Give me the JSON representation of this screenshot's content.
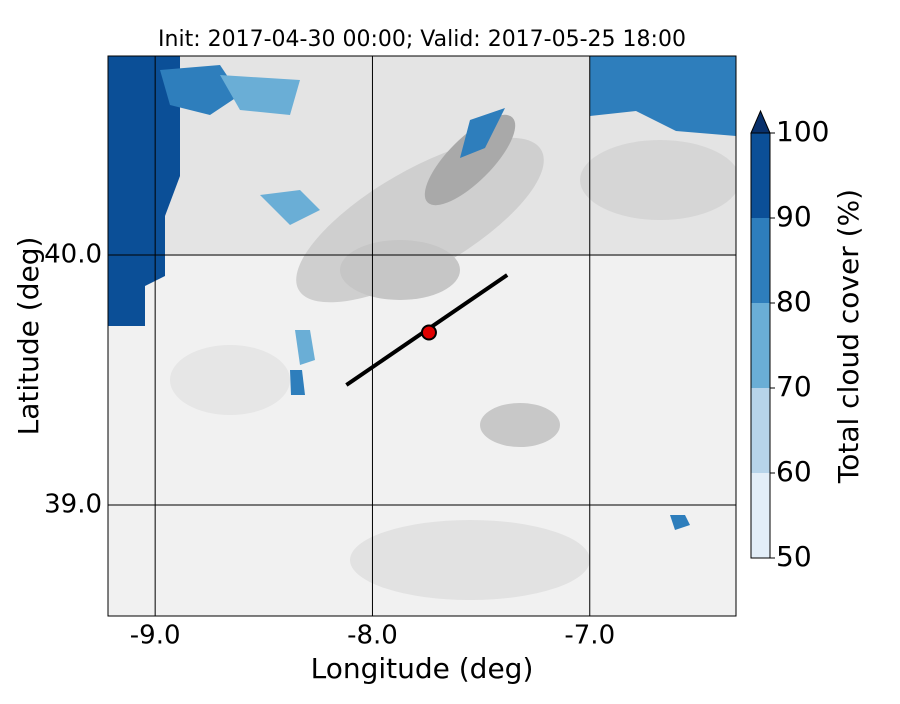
{
  "chart_data": {
    "type": "map",
    "title": "Init: 2017-04-30 00:00; Valid: 2017-05-25 18:00",
    "x_label": "Longitude (deg)",
    "y_label": "Latitude (deg)",
    "xlim": [
      -9.217,
      -6.327
    ],
    "ylim": [
      38.556,
      40.796
    ],
    "xticks": [
      {
        "value": -9,
        "label": "-9.0"
      },
      {
        "value": -8,
        "label": "-8.0"
      },
      {
        "value": -7,
        "label": "-7.0"
      }
    ],
    "yticks": [
      {
        "value": 39,
        "label": "39.0"
      },
      {
        "value": 40,
        "label": "40.0"
      }
    ],
    "grid": true,
    "transect": {
      "lon": [
        -8.12,
        -7.38
      ],
      "lat": [
        39.48,
        39.92
      ],
      "color": "#000000"
    },
    "point": {
      "lon": -7.74,
      "lat": 39.69,
      "color": "#e00000"
    },
    "colorbar": {
      "label": "Total cloud cover (%)",
      "levels": [
        50,
        60,
        70,
        80,
        90,
        100
      ],
      "colors": [
        "#e3eef8",
        "#b7d4ea",
        "#6aaed6",
        "#2e7ebc",
        "#0b4f97"
      ],
      "extend_color": "#08306b",
      "ticks": [
        50,
        60,
        70,
        80,
        90,
        100
      ]
    }
  }
}
